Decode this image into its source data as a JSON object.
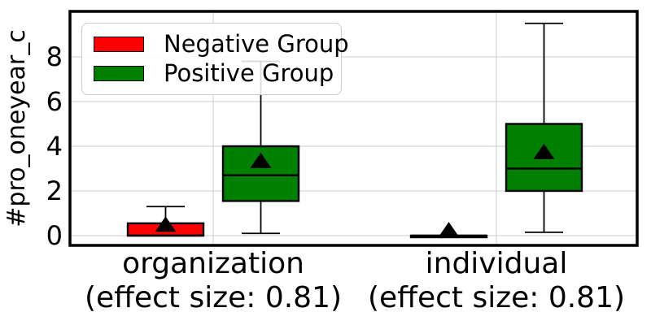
{
  "legend": {
    "items": [
      {
        "label": "Negative Group",
        "color": "#ff0000"
      },
      {
        "label": "Positive Group",
        "color": "#008000"
      }
    ]
  },
  "chart_data": {
    "type": "boxplot",
    "title": "",
    "xlabel": "",
    "ylabel": "#pro_oneyear_c",
    "ylim": [
      -0.45,
      10.1
    ],
    "yticks": [
      0,
      2,
      4,
      6,
      8
    ],
    "grid": true,
    "legend_position": "upper left",
    "mean_marker": "black-triangle-up",
    "categories": [
      {
        "name": "organization",
        "sublabel": "(effect size: 0.81)"
      },
      {
        "name": "individual",
        "sublabel": "(effect size: 0.81)"
      }
    ],
    "series": [
      {
        "name": "Negative Group",
        "color": "#ff0000",
        "boxes": [
          {
            "category": "organization",
            "whisker_low": 0,
            "q1": 0,
            "median": 0,
            "q3": 0.55,
            "whisker_high": 1.3,
            "mean": 0.5
          },
          {
            "category": "individual",
            "whisker_low": 0,
            "q1": 0,
            "median": 0,
            "q3": 0,
            "whisker_high": 0,
            "mean": 0.25
          }
        ]
      },
      {
        "name": "Positive Group",
        "color": "#008000",
        "boxes": [
          {
            "category": "organization",
            "whisker_low": 0.1,
            "q1": 1.55,
            "median": 2.7,
            "q3": 4,
            "whisker_high": 7.8,
            "mean": 3.35
          },
          {
            "category": "individual",
            "whisker_low": 0.15,
            "q1": 2,
            "median": 3,
            "q3": 5,
            "whisker_high": 9.5,
            "mean": 3.75
          }
        ]
      }
    ],
    "style": {
      "box_edge_color": "#000000",
      "grid_color": "#d8d8d8",
      "spine_color": "#000000",
      "text_color": "#000000"
    }
  }
}
